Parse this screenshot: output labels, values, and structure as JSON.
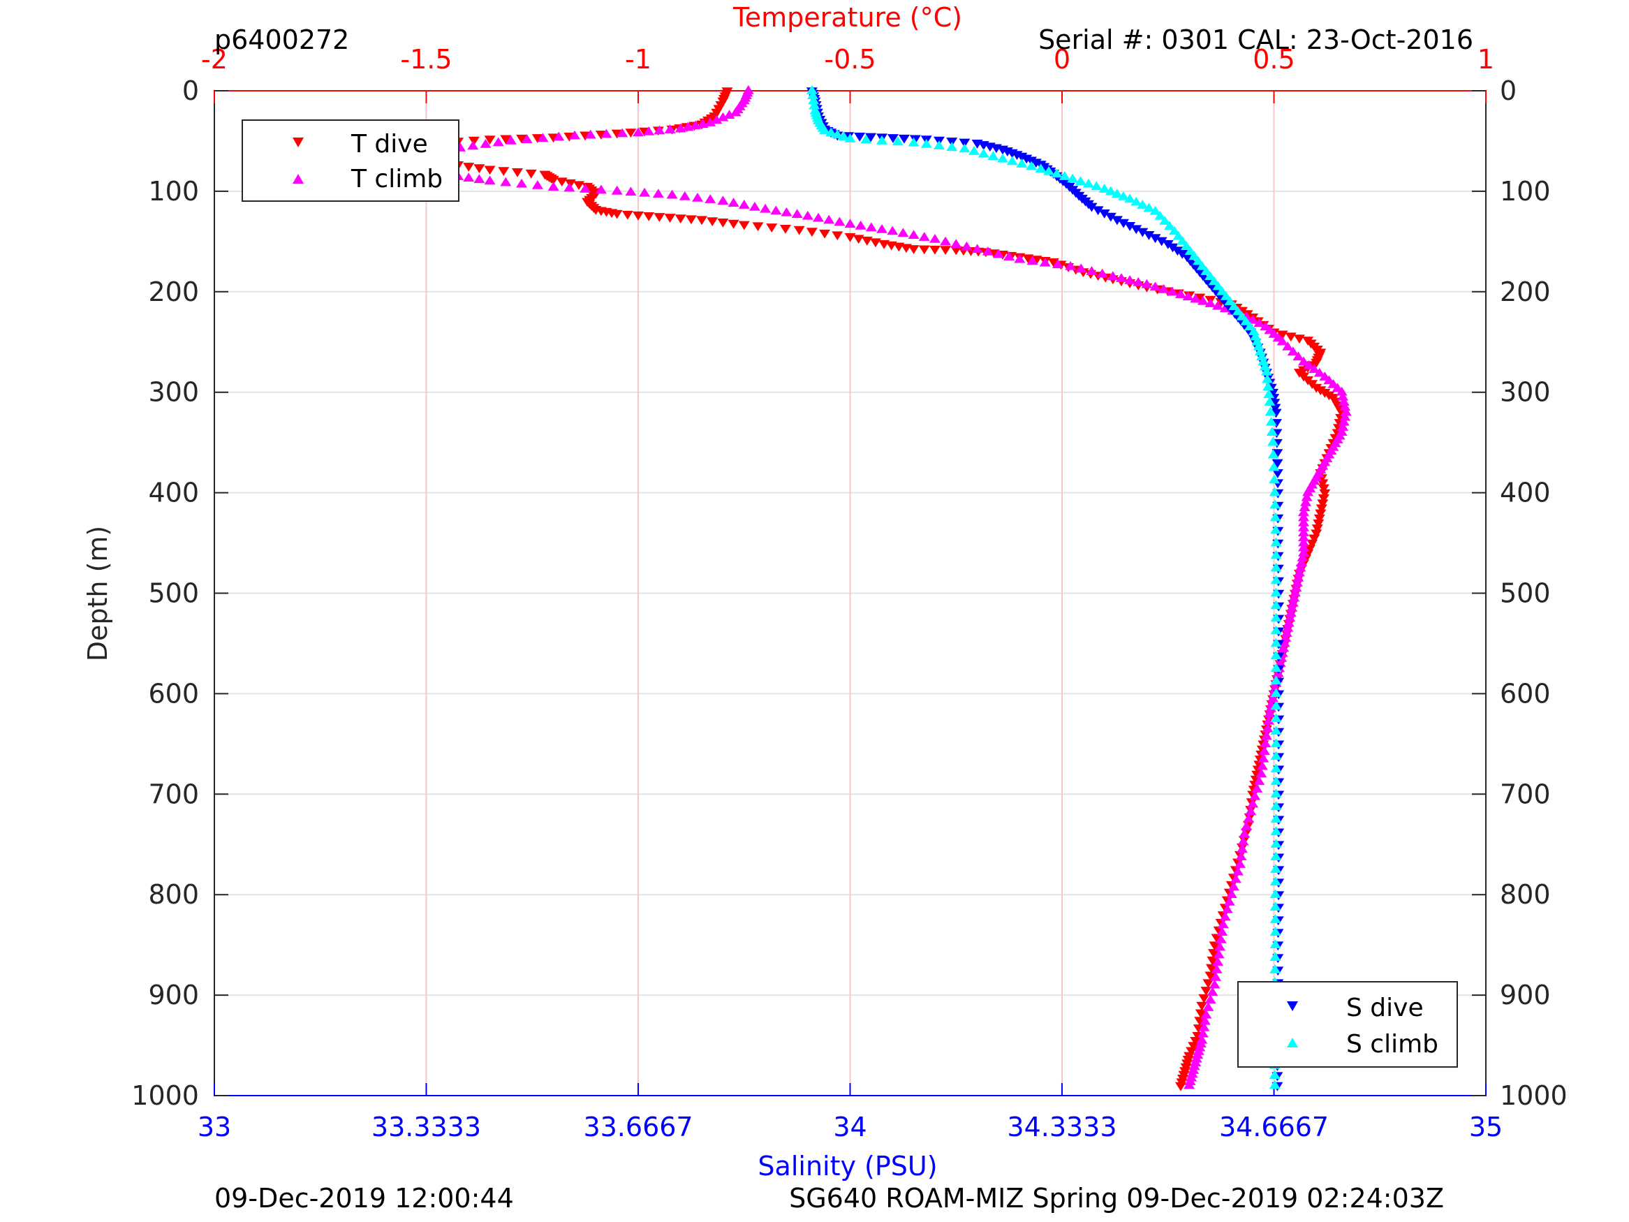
{
  "header": {
    "left_text": "p6400272",
    "right_text": "Serial #: 0301  CAL: 23-Oct-2016"
  },
  "footer": {
    "left_text": "09-Dec-2019 12:00:44",
    "right_text": "SG640 ROAM-MIZ Spring 09-Dec-2019 02:24:03Z"
  },
  "colors": {
    "t_dive": "#ff0000",
    "t_climb": "#ff00ff",
    "s_dive": "#0000ff",
    "s_climb": "#00ffff",
    "temp_axis": "#ff0000",
    "sal_axis": "#0000ff"
  },
  "chart_data": {
    "type": "scatter",
    "ylabel": "Depth (m)",
    "ylim": [
      0,
      1000
    ],
    "y_reversed": true,
    "y_ticks": [
      0,
      100,
      200,
      300,
      400,
      500,
      600,
      700,
      800,
      900,
      1000
    ],
    "x_top_label": "Temperature (°C)",
    "x_top_lim": [
      -2,
      1
    ],
    "x_top_ticks": [
      -2,
      -1.5,
      -1,
      -0.5,
      0,
      0.5,
      1
    ],
    "x_top_tick_labels": [
      "-2",
      "-1.5",
      "-1",
      "-0.5",
      "0",
      "0.5",
      "1"
    ],
    "x_bottom_label": "Salinity (PSU)",
    "x_bottom_lim": [
      33,
      35
    ],
    "x_bottom_ticks": [
      33,
      33.3333,
      33.6667,
      34,
      34.3333,
      34.6667,
      35
    ],
    "x_bottom_tick_labels": [
      "33",
      "33.3333",
      "33.6667",
      "34",
      "34.3333",
      "34.6667",
      "35"
    ],
    "grid": true,
    "legend_temperature": {
      "placement": "top-left",
      "entries": [
        "T dive",
        "T climb"
      ]
    },
    "legend_salinity": {
      "placement": "bottom-right",
      "entries": [
        "S dive",
        "S climb"
      ]
    },
    "series": [
      {
        "name": "T dive",
        "axis": "temperature",
        "marker": "triangle-down",
        "points": [
          [
            -0.79,
            0
          ],
          [
            -0.8,
            10
          ],
          [
            -0.82,
            25
          ],
          [
            -0.85,
            33
          ],
          [
            -0.92,
            38
          ],
          [
            -1.05,
            42
          ],
          [
            -1.2,
            46
          ],
          [
            -1.35,
            48
          ],
          [
            -1.5,
            52
          ],
          [
            -1.6,
            58
          ],
          [
            -1.62,
            63
          ],
          [
            -1.58,
            68
          ],
          [
            -1.45,
            72
          ],
          [
            -1.35,
            78
          ],
          [
            -1.22,
            83
          ],
          [
            -1.2,
            88
          ],
          [
            -1.12,
            95
          ],
          [
            -1.1,
            102
          ],
          [
            -1.12,
            110
          ],
          [
            -1.1,
            118
          ],
          [
            -1.05,
            122
          ],
          [
            -0.95,
            125
          ],
          [
            -0.85,
            128
          ],
          [
            -0.75,
            133
          ],
          [
            -0.62,
            138
          ],
          [
            -0.5,
            145
          ],
          [
            -0.42,
            152
          ],
          [
            -0.35,
            157
          ],
          [
            -0.25,
            158
          ],
          [
            -0.18,
            160
          ],
          [
            -0.1,
            165
          ],
          [
            -0.02,
            170
          ],
          [
            0.05,
            180
          ],
          [
            0.12,
            187
          ],
          [
            0.2,
            195
          ],
          [
            0.3,
            203
          ],
          [
            0.4,
            212
          ],
          [
            0.45,
            225
          ],
          [
            0.5,
            240
          ],
          [
            0.58,
            248
          ],
          [
            0.61,
            260
          ],
          [
            0.6,
            270
          ],
          [
            0.56,
            280
          ],
          [
            0.6,
            295
          ],
          [
            0.64,
            305
          ],
          [
            0.66,
            320
          ],
          [
            0.65,
            340
          ],
          [
            0.63,
            360
          ],
          [
            0.61,
            380
          ],
          [
            0.62,
            400
          ],
          [
            0.61,
            420
          ],
          [
            0.6,
            440
          ],
          [
            0.58,
            460
          ],
          [
            0.56,
            480
          ],
          [
            0.55,
            500
          ],
          [
            0.54,
            520
          ],
          [
            0.53,
            540
          ],
          [
            0.52,
            560
          ],
          [
            0.51,
            580
          ],
          [
            0.5,
            600
          ],
          [
            0.49,
            620
          ],
          [
            0.48,
            640
          ],
          [
            0.47,
            660
          ],
          [
            0.46,
            680
          ],
          [
            0.45,
            700
          ],
          [
            0.44,
            730
          ],
          [
            0.42,
            760
          ],
          [
            0.4,
            790
          ],
          [
            0.38,
            820
          ],
          [
            0.36,
            850
          ],
          [
            0.35,
            880
          ],
          [
            0.33,
            910
          ],
          [
            0.32,
            940
          ],
          [
            0.3,
            960
          ],
          [
            0.29,
            975
          ],
          [
            0.28,
            990
          ]
        ]
      },
      {
        "name": "T climb",
        "axis": "temperature",
        "marker": "triangle-up",
        "points": [
          [
            0.3,
            990
          ],
          [
            0.31,
            975
          ],
          [
            0.32,
            960
          ],
          [
            0.33,
            945
          ],
          [
            0.34,
            920
          ],
          [
            0.36,
            890
          ],
          [
            0.37,
            860
          ],
          [
            0.38,
            830
          ],
          [
            0.4,
            800
          ],
          [
            0.42,
            770
          ],
          [
            0.43,
            740
          ],
          [
            0.45,
            710
          ],
          [
            0.47,
            680
          ],
          [
            0.48,
            650
          ],
          [
            0.49,
            620
          ],
          [
            0.5,
            600
          ],
          [
            0.51,
            580
          ],
          [
            0.52,
            560
          ],
          [
            0.53,
            540
          ],
          [
            0.54,
            520
          ],
          [
            0.55,
            500
          ],
          [
            0.56,
            480
          ],
          [
            0.57,
            460
          ],
          [
            0.57,
            440
          ],
          [
            0.57,
            420
          ],
          [
            0.58,
            400
          ],
          [
            0.6,
            385
          ],
          [
            0.62,
            370
          ],
          [
            0.64,
            355
          ],
          [
            0.66,
            340
          ],
          [
            0.67,
            320
          ],
          [
            0.66,
            300
          ],
          [
            0.62,
            285
          ],
          [
            0.57,
            270
          ],
          [
            0.52,
            250
          ],
          [
            0.48,
            235
          ],
          [
            0.42,
            222
          ],
          [
            0.35,
            212
          ],
          [
            0.28,
            203
          ],
          [
            0.2,
            193
          ],
          [
            0.12,
            185
          ],
          [
            0.02,
            175
          ],
          [
            -0.1,
            168
          ],
          [
            -0.2,
            158
          ],
          [
            -0.3,
            148
          ],
          [
            -0.4,
            140
          ],
          [
            -0.5,
            133
          ],
          [
            -0.6,
            125
          ],
          [
            -0.7,
            118
          ],
          [
            -0.8,
            110
          ],
          [
            -0.92,
            104
          ],
          [
            -1.05,
            100
          ],
          [
            -1.2,
            96
          ],
          [
            -1.35,
            90
          ],
          [
            -1.45,
            84
          ],
          [
            -1.5,
            78
          ],
          [
            -1.52,
            72
          ],
          [
            -1.5,
            65
          ],
          [
            -1.42,
            57
          ],
          [
            -1.3,
            50
          ],
          [
            -1.15,
            45
          ],
          [
            -1.0,
            42
          ],
          [
            -0.9,
            38
          ],
          [
            -0.83,
            32
          ],
          [
            -0.77,
            22
          ],
          [
            -0.75,
            10
          ],
          [
            -0.74,
            0
          ]
        ]
      },
      {
        "name": "S dive",
        "axis": "salinity",
        "marker": "triangle-down",
        "points": [
          [
            33.94,
            0
          ],
          [
            33.945,
            10
          ],
          [
            33.95,
            25
          ],
          [
            33.96,
            38
          ],
          [
            33.98,
            44
          ],
          [
            34.05,
            46
          ],
          [
            34.12,
            48
          ],
          [
            34.2,
            52
          ],
          [
            34.24,
            58
          ],
          [
            34.27,
            65
          ],
          [
            34.3,
            73
          ],
          [
            34.32,
            82
          ],
          [
            34.34,
            92
          ],
          [
            34.36,
            104
          ],
          [
            34.38,
            115
          ],
          [
            34.42,
            128
          ],
          [
            34.46,
            140
          ],
          [
            34.5,
            152
          ],
          [
            34.53,
            165
          ],
          [
            34.55,
            180
          ],
          [
            34.57,
            195
          ],
          [
            34.59,
            210
          ],
          [
            34.61,
            225
          ],
          [
            34.63,
            240
          ],
          [
            34.645,
            260
          ],
          [
            34.655,
            280
          ],
          [
            34.665,
            300
          ],
          [
            34.67,
            320
          ],
          [
            34.672,
            360
          ],
          [
            34.673,
            400
          ],
          [
            34.673,
            450
          ],
          [
            34.674,
            500
          ],
          [
            34.674,
            550
          ],
          [
            34.674,
            600
          ],
          [
            34.674,
            650
          ],
          [
            34.674,
            700
          ],
          [
            34.674,
            750
          ],
          [
            34.674,
            800
          ],
          [
            34.673,
            850
          ],
          [
            34.673,
            900
          ],
          [
            34.672,
            950
          ],
          [
            34.672,
            990
          ]
        ]
      },
      {
        "name": "S climb",
        "axis": "salinity",
        "marker": "triangle-up",
        "points": [
          [
            34.668,
            990
          ],
          [
            34.668,
            950
          ],
          [
            34.668,
            900
          ],
          [
            34.669,
            850
          ],
          [
            34.669,
            800
          ],
          [
            34.67,
            750
          ],
          [
            34.67,
            700
          ],
          [
            34.67,
            650
          ],
          [
            34.67,
            600
          ],
          [
            34.67,
            550
          ],
          [
            34.67,
            500
          ],
          [
            34.67,
            450
          ],
          [
            34.668,
            400
          ],
          [
            34.665,
            350
          ],
          [
            34.66,
            310
          ],
          [
            34.655,
            280
          ],
          [
            34.645,
            260
          ],
          [
            34.635,
            240
          ],
          [
            34.61,
            220
          ],
          [
            34.585,
            200
          ],
          [
            34.56,
            180
          ],
          [
            34.535,
            160
          ],
          [
            34.51,
            140
          ],
          [
            34.48,
            120
          ],
          [
            34.44,
            108
          ],
          [
            34.4,
            98
          ],
          [
            34.35,
            88
          ],
          [
            34.3,
            78
          ],
          [
            34.24,
            68
          ],
          [
            34.18,
            58
          ],
          [
            34.1,
            52
          ],
          [
            34.0,
            48
          ],
          [
            33.96,
            40
          ],
          [
            33.95,
            30
          ],
          [
            33.945,
            20
          ],
          [
            33.94,
            0
          ]
        ]
      }
    ]
  }
}
